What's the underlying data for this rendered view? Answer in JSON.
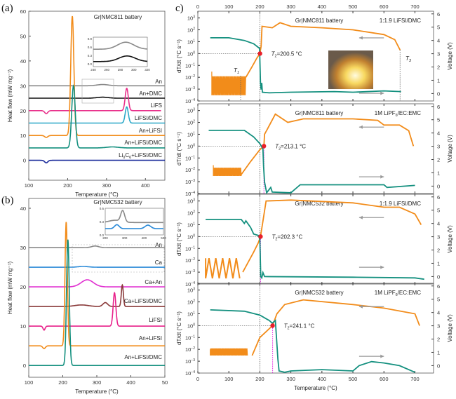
{
  "panel_labels": {
    "a": "(a)",
    "b": "(b)",
    "c": "c)"
  },
  "chart_data": [
    {
      "id": "a",
      "type": "line",
      "title": "Gr|NMC811 battery",
      "xlabel": "Temperature (°C)",
      "ylabel": "Heat flow (mW mg⁻¹)",
      "xlim": [
        100,
        450
      ],
      "ylim": [
        -8,
        60
      ],
      "xticks": [
        100,
        200,
        300,
        400
      ],
      "yticks": [
        0,
        10,
        20,
        30,
        40,
        50,
        60
      ],
      "series": [
        {
          "name": "An",
          "color": "#8a8a8a",
          "baseline": 30,
          "features": [
            [
              290,
              0.5,
              15
            ]
          ]
        },
        {
          "name": "An+DMC",
          "color": "#111111",
          "baseline": 25,
          "features": [
            [
              290,
              0.4,
              15
            ]
          ]
        },
        {
          "name": "LiFS",
          "color": "#e8308a",
          "baseline": 20,
          "features": [
            [
              145,
              -1.2,
              4
            ],
            [
              352,
              9,
              4
            ]
          ],
          "end": 440
        },
        {
          "name": "LiFSI/DMC",
          "color": "#2aa8c8",
          "baseline": 15,
          "features": [
            [
              352,
              6.5,
              4
            ]
          ]
        },
        {
          "name": "An+LiFSI",
          "color": "#f28c1a",
          "baseline": 10,
          "features": [
            [
              145,
              -0.8,
              4
            ],
            [
              212,
              48,
              4
            ]
          ]
        },
        {
          "name": "An+LiFSI/DMC",
          "color": "#14907f",
          "baseline": 5,
          "features": [
            [
              215,
              25,
              4.5
            ],
            [
              315,
              0.4,
              15
            ]
          ]
        },
        {
          "name": "Li0C6+LiFSI/DMC",
          "label_sub": "0",
          "label_pre": "Li",
          "label_post": "C",
          "label_sub2": "6",
          "label_tail": "+LiFSI/DMC",
          "color": "#1a2a9a",
          "baseline": 0,
          "features": [
            [
              145,
              -1,
              4
            ]
          ]
        }
      ],
      "inset": {
        "xlim": [
          240,
          320
        ],
        "ylim": [
          -0.1,
          0.95
        ],
        "xticks": [
          240,
          260,
          280,
          300,
          320
        ],
        "yticks": [
          "0.0",
          "0.3",
          "0.6",
          "0.9"
        ],
        "series": [
          {
            "color": "#8a8a8a",
            "baseline": 0.52,
            "features": [
              [
                288,
                0.25,
                12
              ]
            ]
          },
          {
            "color": "#111111",
            "baseline": 0.08,
            "features": [
              [
                290,
                0.2,
                12
              ]
            ]
          }
        ]
      }
    },
    {
      "id": "b",
      "type": "line",
      "title": "Gr|NMC532 battery",
      "xlabel": "Temperature (°C)",
      "ylabel": "Heat flow (mW mg⁻¹)",
      "xlim": [
        100,
        500
      ],
      "ylim": [
        -3,
        42.5
      ],
      "xticks": [
        100,
        200,
        300,
        400,
        "50"
      ],
      "yticks": [
        0,
        10,
        20,
        30,
        40
      ],
      "series": [
        {
          "name": "An",
          "color": "#8a8a8a",
          "baseline": 30,
          "features": [
            [
              295,
              0.4,
              10
            ]
          ]
        },
        {
          "name": "Ca",
          "color": "#2a8ad8",
          "baseline": 25,
          "features": [
            [
              260,
              0.2,
              15
            ]
          ]
        },
        {
          "name": "Ca+An",
          "color": "#e030d0",
          "baseline": 20,
          "features": [
            [
              272,
              1.8,
              18
            ]
          ]
        },
        {
          "name": "Ca+LiFSI/DMC",
          "color": "#8a3a3a",
          "baseline": 15,
          "features": [
            [
              255,
              0.4,
              20
            ],
            [
              325,
              1,
              7
            ],
            [
              375,
              5.5,
              3
            ]
          ]
        },
        {
          "name": "LiFSI",
          "color": "#e8208a",
          "baseline": 10,
          "features": [
            [
              145,
              -1,
              3
            ],
            [
              352,
              8.5,
              4
            ]
          ]
        },
        {
          "name": "An+LiFSI",
          "color": "#f28c1a",
          "baseline": 5,
          "features": [
            [
              145,
              -0.7,
              4
            ],
            [
              210,
              31.5,
              3.5
            ]
          ]
        },
        {
          "name": "An+LiFSI/DMC",
          "color": "#14907f",
          "baseline": 0,
          "features": [
            [
              215,
              32,
              4
            ]
          ]
        }
      ],
      "inset": {
        "xlim": [
          200,
          500
        ],
        "ylim": [
          0,
          0.6
        ],
        "xticks": [
          200,
          300,
          400,
          500
        ],
        "yticks": [
          "0.0",
          "0.3",
          "0.6"
        ],
        "series": [
          {
            "color": "#8a8a8a",
            "baseline": 0.28,
            "features": [
              [
                290,
                0.25,
                10
              ],
              [
                250,
                0.05,
                30
              ]
            ]
          },
          {
            "color": "#2a8ad8",
            "baseline": 0.14,
            "features": [
              [
                260,
                0.09,
                12
              ],
              [
                420,
                0.08,
                15
              ]
            ]
          }
        ]
      }
    },
    {
      "id": "c",
      "type": "line",
      "xlabel": "Temperature (°C)",
      "ylabel_left": "dT/dt (°C s⁻¹)",
      "ylabel_right": "Voltage (V)",
      "xlim": [
        0,
        760
      ],
      "xticks": [
        0,
        100,
        200,
        300,
        400,
        500,
        600,
        700
      ],
      "ylog_exponents": [
        3,
        2,
        1,
        0,
        -1,
        -2,
        -3,
        -4
      ],
      "yright_ticks": [
        0,
        1,
        2,
        3,
        4,
        5,
        6
      ],
      "colors": {
        "dTdt": "#f28c1a",
        "voltage": "#14907f",
        "marker": "#e8202a",
        "t2_line": "#e020e0"
      },
      "panels": [
        {
          "title": "Gr|NMC811 battery",
          "electrolyte": "1:1.9 LiFSI/DMC",
          "t2_label": "=200.5 °C",
          "t2": 200.5,
          "T1": "T",
          "T1_sub": "1",
          "T3": "T",
          "T3_sub": "3",
          "has_photo": true,
          "dTdt_noise": {
            "T": [
              45,
              155
            ],
            "range": [
              0.0003,
              0.012
            ],
            "start": 0.03
          },
          "dTdt": [
            [
              155,
              0.01
            ],
            [
              175,
              0.08
            ],
            [
              190,
              0.4
            ],
            [
              200,
              1
            ],
            [
              204,
              4
            ],
            [
              207,
              200
            ],
            [
              240,
              150
            ],
            [
              265,
              400
            ],
            [
              300,
              200
            ],
            [
              400,
              150
            ],
            [
              500,
              100
            ],
            [
              600,
              40
            ],
            [
              635,
              15
            ],
            [
              652,
              2
            ]
          ],
          "voltage": [
            [
              40,
              4.2
            ],
            [
              100,
              4.2
            ],
            [
              150,
              4.0
            ],
            [
              180,
              3.75
            ],
            [
              199,
              3.4
            ],
            [
              202,
              0.8
            ],
            [
              204,
              0.3
            ],
            [
              206,
              0.8
            ],
            [
              208,
              0.1
            ],
            [
              230,
              0.05
            ],
            [
              300,
              0.1
            ],
            [
              440,
              0.15
            ],
            [
              500,
              0.1
            ],
            [
              600,
              0.2
            ],
            [
              655,
              0.15
            ]
          ]
        },
        {
          "title": "Gr|NMC811 battery",
          "electrolyte_pre": "1M LiPF",
          "electrolyte_sub": "6",
          "electrolyte_post": "/EC:EMC",
          "t2_label": "=213.1 °C",
          "t2": 213.1,
          "dTdt_noise": {
            "T": [
              50,
              140
            ],
            "range": [
              0.003,
              0.015
            ],
            "start": 0.025
          },
          "dTdt": [
            [
              140,
              0.004
            ],
            [
              170,
              0.05
            ],
            [
              200,
              0.5
            ],
            [
              213,
              1
            ],
            [
              215,
              10
            ],
            [
              225,
              30
            ],
            [
              250,
              500
            ],
            [
              290,
              100
            ],
            [
              340,
              200
            ],
            [
              500,
              200
            ],
            [
              580,
              150
            ],
            [
              600,
              60
            ],
            [
              650,
              60
            ],
            [
              680,
              20
            ],
            [
              695,
              1
            ]
          ],
          "voltage": [
            [
              35,
              4.2
            ],
            [
              150,
              4.2
            ],
            [
              180,
              3.7
            ],
            [
              200,
              3.2
            ],
            [
              210,
              2.8
            ],
            [
              212,
              1.5
            ],
            [
              215,
              0.3
            ],
            [
              222,
              -0.5
            ],
            [
              235,
              -0.1
            ],
            [
              240,
              -0.45
            ],
            [
              300,
              -0.5
            ],
            [
              330,
              0.1
            ],
            [
              600,
              0.1
            ],
            [
              610,
              -0.1
            ],
            [
              700,
              0.05
            ]
          ]
        },
        {
          "title": "Gr|NMC532 battery",
          "electrolyte": "1:1.9 LiFSI/DMC",
          "t2_label": "=202.3 °C",
          "t2": 202.3,
          "dTdt_noise": {
            "T": [
              25,
              140
            ],
            "range": [
              0.0003,
              0.015
            ],
            "start": 0.015,
            "loops": true
          },
          "dTdt": [
            [
              145,
              0.001
            ],
            [
              180,
              0.05
            ],
            [
              195,
              0.3
            ],
            [
              202,
              1
            ],
            [
              210,
              20
            ],
            [
              220,
              1000
            ],
            [
              300,
              1200
            ],
            [
              500,
              700
            ],
            [
              600,
              300
            ],
            [
              650,
              300
            ],
            [
              700,
              80
            ],
            [
              720,
              10
            ]
          ],
          "voltage": [
            [
              25,
              4.3
            ],
            [
              140,
              4.3
            ],
            [
              150,
              4.0
            ],
            [
              155,
              4.2
            ],
            [
              170,
              3.7
            ],
            [
              180,
              3.2
            ],
            [
              195,
              3.1
            ],
            [
              200,
              2.8
            ],
            [
              203,
              0
            ],
            [
              206,
              -0.1
            ],
            [
              210,
              0.3
            ],
            [
              215,
              0
            ],
            [
              500,
              -0.05
            ],
            [
              700,
              -0.1
            ],
            [
              730,
              -0.2
            ]
          ]
        },
        {
          "title": "Gr|NMC532 battery",
          "electrolyte_pre": "1M LiPF",
          "electrolyte_sub": "6",
          "electrolyte_post": "/EC:EMC",
          "t2_label": "=241.1 °C",
          "t2": 241.1,
          "dTdt_noise": {
            "T": [
              40,
              160
            ],
            "range": [
              0.003,
              0.012
            ],
            "start": 0.01
          },
          "dTdt": [
            [
              175,
              0.003
            ],
            [
              200,
              0.1
            ],
            [
              241,
              1
            ],
            [
              255,
              10
            ],
            [
              280,
              60
            ],
            [
              340,
              150
            ],
            [
              500,
              60
            ],
            [
              600,
              30
            ],
            [
              700,
              10
            ],
            [
              715,
              1
            ]
          ],
          "voltage": [
            [
              40,
              4.2
            ],
            [
              150,
              4.1
            ],
            [
              200,
              3.8
            ],
            [
              230,
              3.4
            ],
            [
              240,
              3.2
            ],
            [
              250,
              3.4
            ],
            [
              258,
              0.5
            ],
            [
              262,
              -0.4
            ],
            [
              280,
              -0.5
            ],
            [
              300,
              -0.4
            ],
            [
              400,
              -0.3
            ],
            [
              500,
              -0.4
            ],
            [
              520,
              0
            ],
            [
              560,
              0.3
            ],
            [
              600,
              0.2
            ],
            [
              650,
              0
            ],
            [
              700,
              -0.5
            ]
          ]
        }
      ]
    }
  ]
}
